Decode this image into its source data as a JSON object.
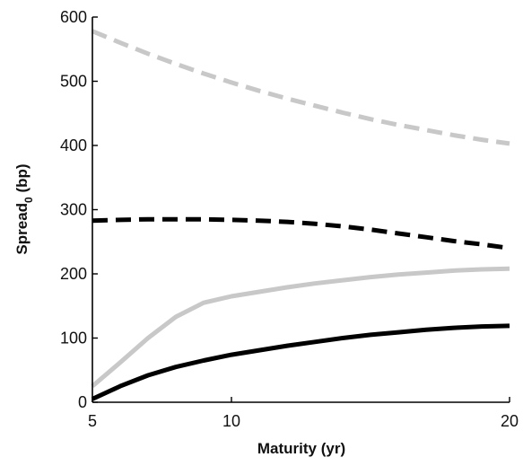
{
  "chart_data": {
    "type": "line",
    "xlabel": "Maturity (yr)",
    "ylabel_main": "Spread",
    "ylabel_sub": "0",
    "ylabel_unit": " (bp)",
    "xlim": [
      5,
      20
    ],
    "ylim": [
      0,
      600
    ],
    "xticks": [
      5,
      10,
      20
    ],
    "yticks": [
      0,
      100,
      200,
      300,
      400,
      500,
      600
    ],
    "grid": false,
    "series": [
      {
        "color": "#c8c8c8",
        "style": "dashed",
        "x": [
          5,
          6,
          7,
          8,
          9,
          10,
          11,
          12,
          13,
          14,
          15,
          16,
          17,
          18,
          19,
          20
        ],
        "values": [
          578,
          560,
          543,
          527,
          512,
          498,
          485,
          473,
          462,
          451,
          441,
          432,
          424,
          416,
          409,
          403
        ]
      },
      {
        "color": "#000000",
        "style": "dashed",
        "x": [
          5,
          6,
          7,
          8,
          9,
          10,
          11,
          12,
          13,
          14,
          15,
          16,
          17,
          18,
          19,
          20
        ],
        "values": [
          283,
          284,
          285,
          285,
          285,
          284,
          283,
          281,
          278,
          274,
          269,
          263,
          257,
          251,
          246,
          240
        ]
      },
      {
        "color": "#c8c8c8",
        "style": "solid",
        "x": [
          5,
          6,
          7,
          8,
          9,
          10,
          11,
          12,
          13,
          14,
          15,
          16,
          17,
          18,
          19,
          20
        ],
        "values": [
          25,
          62,
          100,
          133,
          155,
          165,
          172,
          179,
          185,
          190,
          195,
          199,
          202,
          205,
          207,
          208
        ]
      },
      {
        "color": "#000000",
        "style": "solid",
        "x": [
          5,
          6,
          7,
          8,
          9,
          10,
          11,
          12,
          13,
          14,
          15,
          16,
          17,
          18,
          19,
          20
        ],
        "values": [
          5,
          25,
          42,
          55,
          65,
          74,
          81,
          88,
          94,
          100,
          105,
          109,
          113,
          116,
          118,
          119
        ]
      }
    ]
  }
}
